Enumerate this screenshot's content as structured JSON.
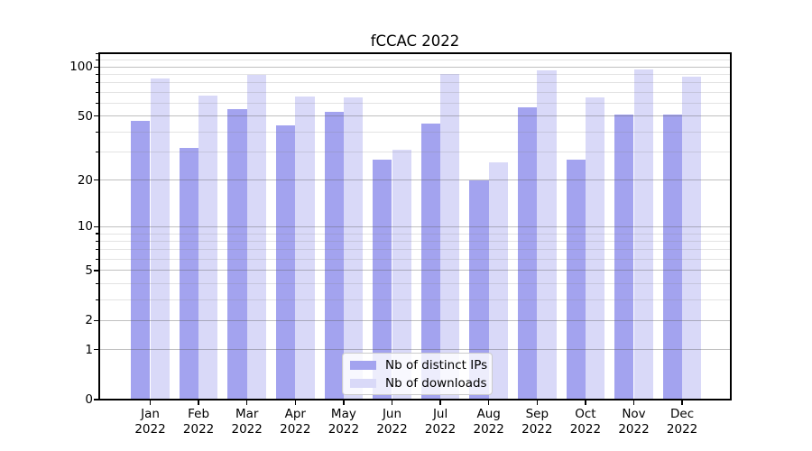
{
  "chart_data": {
    "type": "bar",
    "title": "fCCAC 2022",
    "categories": [
      "Jan",
      "Feb",
      "Mar",
      "Apr",
      "May",
      "Jun",
      "Jul",
      "Aug",
      "Sep",
      "Oct",
      "Nov",
      "Dec"
    ],
    "category_year": "2022",
    "series": [
      {
        "name": "Nb of distinct IPs",
        "color": "#a3a3ef",
        "values": [
          47,
          32,
          55,
          44,
          53,
          27,
          45,
          20,
          57,
          27,
          51,
          51
        ]
      },
      {
        "name": "Nb of downloads",
        "color": "#d9d9f8",
        "values": [
          85,
          67,
          90,
          66,
          65,
          31,
          91,
          26,
          95,
          65,
          96,
          87
        ]
      }
    ],
    "xlabel": "",
    "ylabel": "",
    "yscale": "log1p",
    "ylim": [
      0,
      121
    ],
    "y_major_ticks": [
      0,
      1,
      2,
      5,
      10,
      20,
      50,
      100
    ],
    "y_minor_ticks": [
      3,
      4,
      6,
      7,
      8,
      9,
      30,
      40,
      60,
      70,
      80,
      90,
      110,
      120
    ],
    "grid": true,
    "legend": {
      "position": "lower center",
      "entries": [
        "Nb of distinct IPs",
        "Nb of downloads"
      ]
    }
  },
  "colors": {
    "axis": "#000000",
    "grid_major": "rgba(90,90,90,0.38)",
    "grid_minor": "rgba(128,128,128,0.22)",
    "background": "#ffffff"
  }
}
